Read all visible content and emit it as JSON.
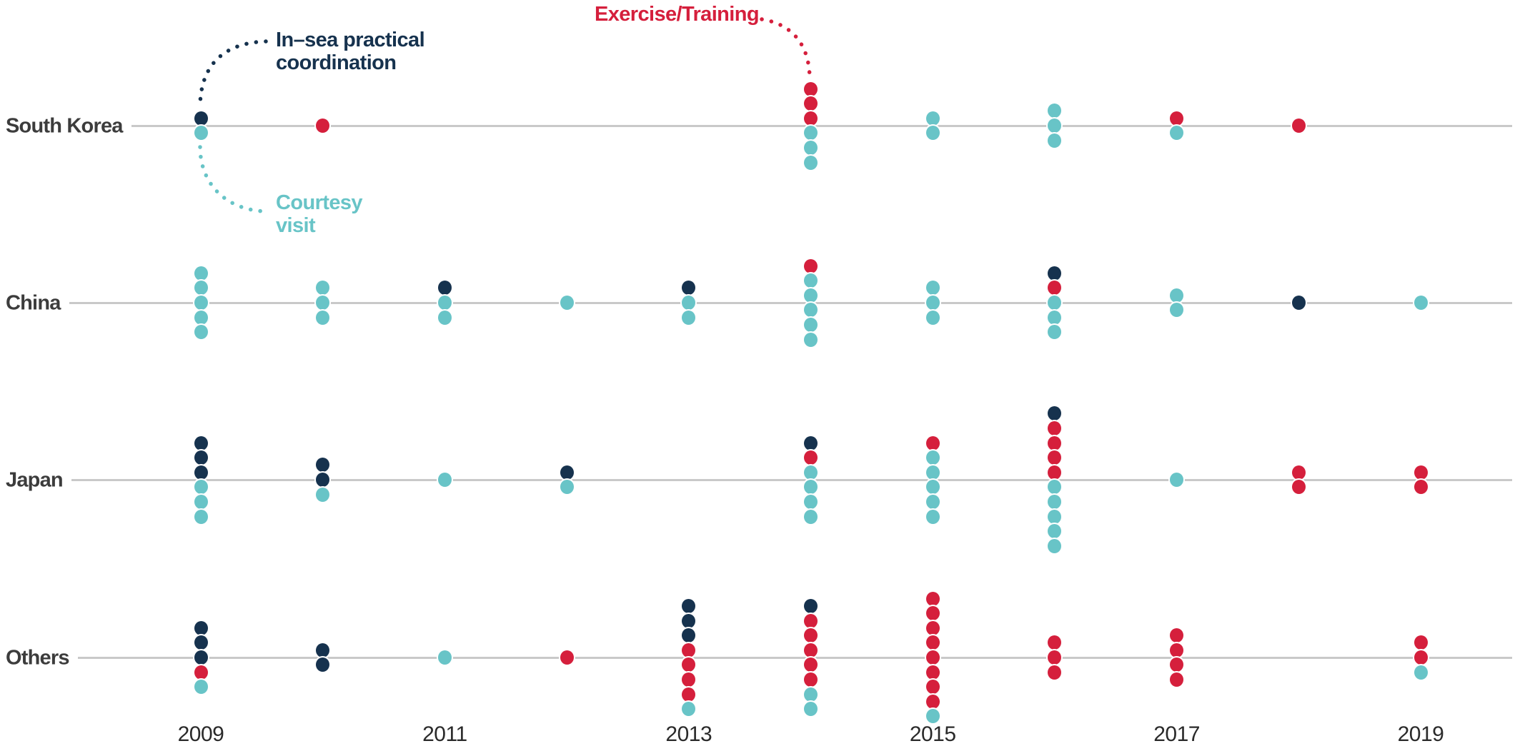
{
  "chart_data": {
    "type": "dot-timeline",
    "description": "Naval events by country and year, one dot per event, stacks centered on each country's timeline",
    "category_order": [
      "in_sea_practical_coordination",
      "exercise_training",
      "courtesy_visit"
    ],
    "categories": [
      {
        "id": "in_sea_practical_coordination",
        "label": "In–sea practical coordination",
        "color": "#16324e"
      },
      {
        "id": "exercise_training",
        "label": "Exercise/Training",
        "color": "#d51f3c"
      },
      {
        "id": "courtesy_visit",
        "label": "Courtesy visit",
        "color": "#68c4c7"
      }
    ],
    "x_axis": {
      "range": [
        2009,
        2019
      ],
      "tick_labels": [
        "2009",
        "2011",
        "2013",
        "2015",
        "2017",
        "2019"
      ],
      "tick_years": [
        2009,
        2011,
        2013,
        2015,
        2017,
        2019
      ]
    },
    "grid": "horizontal row lines only",
    "line_color": "#c9c9c9",
    "row_label_color": "#3c3c3c",
    "axis_label_color": "#2a2a2a",
    "rows": [
      {
        "label": "South Korea",
        "events": [
          {
            "year": 2009,
            "counts": [
              1,
              0,
              1
            ]
          },
          {
            "year": 2010,
            "counts": [
              0,
              1,
              0
            ]
          },
          {
            "year": 2014,
            "counts": [
              0,
              3,
              3
            ]
          },
          {
            "year": 2015,
            "counts": [
              0,
              0,
              2
            ]
          },
          {
            "year": 2016,
            "counts": [
              0,
              0,
              3
            ]
          },
          {
            "year": 2017,
            "counts": [
              0,
              1,
              1
            ]
          },
          {
            "year": 2018,
            "counts": [
              0,
              1,
              0
            ]
          }
        ]
      },
      {
        "label": "China",
        "events": [
          {
            "year": 2009,
            "counts": [
              0,
              0,
              5
            ]
          },
          {
            "year": 2010,
            "counts": [
              0,
              0,
              3
            ]
          },
          {
            "year": 2011,
            "counts": [
              1,
              0,
              2
            ]
          },
          {
            "year": 2012,
            "counts": [
              0,
              0,
              1
            ]
          },
          {
            "year": 2013,
            "counts": [
              1,
              0,
              2
            ]
          },
          {
            "year": 2014,
            "counts": [
              0,
              1,
              5
            ]
          },
          {
            "year": 2015,
            "counts": [
              0,
              0,
              3
            ]
          },
          {
            "year": 2016,
            "counts": [
              1,
              1,
              3
            ]
          },
          {
            "year": 2017,
            "counts": [
              0,
              0,
              2
            ]
          },
          {
            "year": 2018,
            "counts": [
              1,
              0,
              0
            ]
          },
          {
            "year": 2019,
            "counts": [
              0,
              0,
              1
            ]
          }
        ]
      },
      {
        "label": "Japan",
        "events": [
          {
            "year": 2009,
            "counts": [
              3,
              0,
              3
            ]
          },
          {
            "year": 2010,
            "counts": [
              2,
              0,
              1
            ]
          },
          {
            "year": 2011,
            "counts": [
              0,
              0,
              1
            ]
          },
          {
            "year": 2012,
            "counts": [
              1,
              0,
              1
            ]
          },
          {
            "year": 2014,
            "counts": [
              1,
              1,
              4
            ]
          },
          {
            "year": 2015,
            "counts": [
              0,
              1,
              5
            ]
          },
          {
            "year": 2016,
            "counts": [
              1,
              4,
              5
            ]
          },
          {
            "year": 2017,
            "counts": [
              0,
              0,
              1
            ]
          },
          {
            "year": 2018,
            "counts": [
              0,
              2,
              0
            ]
          },
          {
            "year": 2019,
            "counts": [
              0,
              2,
              0
            ]
          }
        ]
      },
      {
        "label": "Others",
        "events": [
          {
            "year": 2009,
            "counts": [
              3,
              1,
              1
            ]
          },
          {
            "year": 2010,
            "counts": [
              2,
              0,
              0
            ]
          },
          {
            "year": 2011,
            "counts": [
              0,
              0,
              1
            ]
          },
          {
            "year": 2012,
            "counts": [
              0,
              1,
              0
            ]
          },
          {
            "year": 2013,
            "counts": [
              3,
              4,
              1
            ]
          },
          {
            "year": 2014,
            "counts": [
              1,
              5,
              2
            ]
          },
          {
            "year": 2015,
            "counts": [
              0,
              8,
              1
            ]
          },
          {
            "year": 2016,
            "counts": [
              0,
              3,
              0
            ]
          },
          {
            "year": 2017,
            "counts": [
              0,
              4,
              0
            ]
          },
          {
            "year": 2019,
            "counts": [
              0,
              2,
              1
            ]
          }
        ]
      }
    ]
  }
}
